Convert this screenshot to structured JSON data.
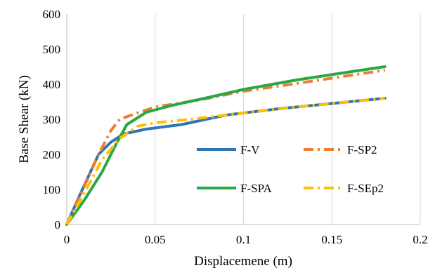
{
  "chart_data": {
    "type": "line",
    "xlabel": "Displacemene (m)",
    "ylabel": "Base Shear (kN)",
    "xlim": [
      0,
      0.2
    ],
    "ylim": [
      0,
      600
    ],
    "xticks": [
      0,
      0.05,
      0.1,
      0.15,
      0.2
    ],
    "xtick_labels": [
      "0",
      "0.05",
      "0.1",
      "0.15",
      "0.2"
    ],
    "yticks": [
      0,
      100,
      200,
      300,
      400,
      500,
      600
    ],
    "ytick_labels": [
      "0",
      "100",
      "200",
      "300",
      "400",
      "500",
      "600"
    ],
    "grid": "vertical",
    "legend_position": "lower-right",
    "series": [
      {
        "name": "F-V",
        "color": "#2E75B6",
        "style": "solid",
        "x": [
          0,
          0.007,
          0.018,
          0.025,
          0.032,
          0.045,
          0.065,
          0.09,
          0.12,
          0.15,
          0.18
        ],
        "y": [
          0,
          80,
          200,
          235,
          258,
          272,
          285,
          312,
          330,
          345,
          360
        ]
      },
      {
        "name": "F-SP2",
        "color": "#ED7D31",
        "style": "dash-dot",
        "x": [
          0,
          0.01,
          0.018,
          0.025,
          0.03,
          0.04,
          0.05,
          0.075,
          0.1,
          0.13,
          0.16,
          0.18
        ],
        "y": [
          0,
          110,
          200,
          268,
          300,
          318,
          335,
          355,
          380,
          402,
          425,
          440
        ]
      },
      {
        "name": "F-SPA",
        "color": "#27A844",
        "style": "solid",
        "x": [
          0,
          0.01,
          0.02,
          0.028,
          0.034,
          0.045,
          0.06,
          0.08,
          0.1,
          0.13,
          0.16,
          0.18
        ],
        "y": [
          0,
          70,
          150,
          230,
          285,
          320,
          340,
          362,
          385,
          412,
          435,
          450
        ]
      },
      {
        "name": "F-SEp2",
        "color": "#FFC000",
        "style": "dash-dot",
        "x": [
          0,
          0.01,
          0.02,
          0.03,
          0.04,
          0.05,
          0.07,
          0.1,
          0.13,
          0.16,
          0.18
        ],
        "y": [
          0,
          90,
          185,
          245,
          280,
          290,
          300,
          318,
          335,
          350,
          360
        ]
      }
    ]
  }
}
